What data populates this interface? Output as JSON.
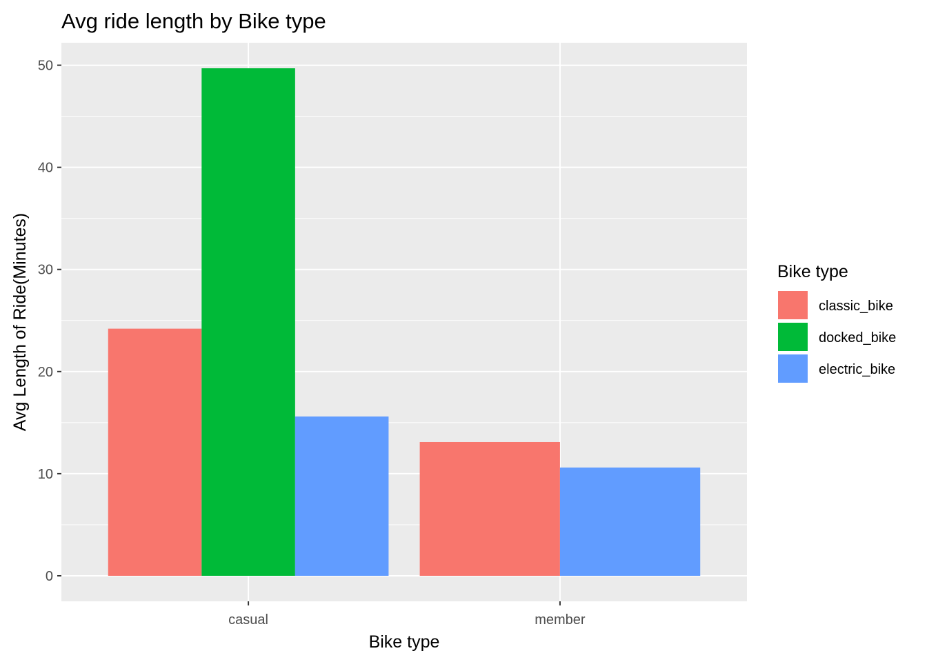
{
  "chart_data": {
    "type": "bar",
    "title": "Avg ride length by Bike type",
    "xlabel": "Bike type",
    "ylabel": "Avg Length of Ride(Minutes)",
    "categories": [
      "casual",
      "member"
    ],
    "ylim": [
      -2.5,
      52.2
    ],
    "yticks": [
      "0",
      "10",
      "20",
      "30",
      "40",
      "50"
    ],
    "grid": true,
    "legend": {
      "title": "Bike type",
      "placement": "right",
      "entries": [
        {
          "name": "classic_bike",
          "color": "#F8766D"
        },
        {
          "name": "docked_bike",
          "color": "#00BA38"
        },
        {
          "name": "electric_bike",
          "color": "#619CFF"
        }
      ]
    },
    "series": [
      {
        "name": "classic_bike",
        "color": "#F8766D",
        "values": [
          24.2,
          13.1
        ]
      },
      {
        "name": "docked_bike",
        "color": "#00BA38",
        "values": [
          49.7,
          null
        ]
      },
      {
        "name": "electric_bike",
        "color": "#619CFF",
        "values": [
          15.6,
          10.6
        ]
      }
    ]
  }
}
